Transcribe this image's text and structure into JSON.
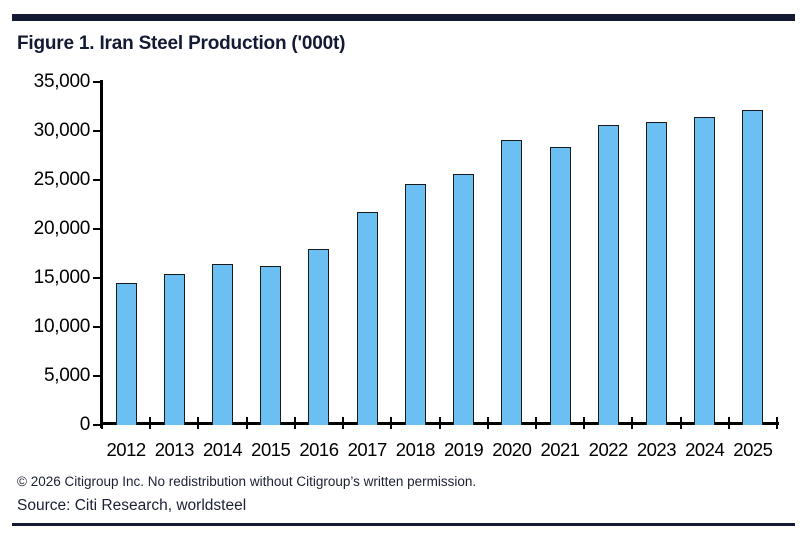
{
  "header": {
    "title": "Figure 1. Iran Steel Production ('000t)"
  },
  "footer": {
    "copyright": "© 2026 Citigroup Inc. No redistribution without Citigroup’s written permission.",
    "source": "Source: Citi Research, worldsteel"
  },
  "colors": {
    "navy_rule": "#141a33",
    "title_text": "#141a33",
    "bar_fill": "#6cbff2",
    "bar_border": "#1a1a1a",
    "axis": "#000000",
    "footer_text": "#1b2032"
  },
  "chart_data": {
    "type": "bar",
    "title": "Figure 1. Iran Steel Production ('000t)",
    "categories": [
      "2012",
      "2013",
      "2014",
      "2015",
      "2016",
      "2017",
      "2018",
      "2019",
      "2020",
      "2021",
      "2022",
      "2023",
      "2024",
      "2025"
    ],
    "values": [
      14450,
      15450,
      16400,
      16200,
      18000,
      21700,
      24550,
      25650,
      29050,
      28350,
      30650,
      30900,
      31400,
      32100
    ],
    "xlabel": "",
    "ylabel": "",
    "ylim": [
      0,
      35000
    ],
    "ytick_step": 5000,
    "ytick_labels": [
      "0",
      "5,000",
      "10,000",
      "15,000",
      "20,000",
      "25,000",
      "30,000",
      "35,000"
    ],
    "grid": false,
    "legend": "none",
    "bar_color": "#6cbff2"
  }
}
